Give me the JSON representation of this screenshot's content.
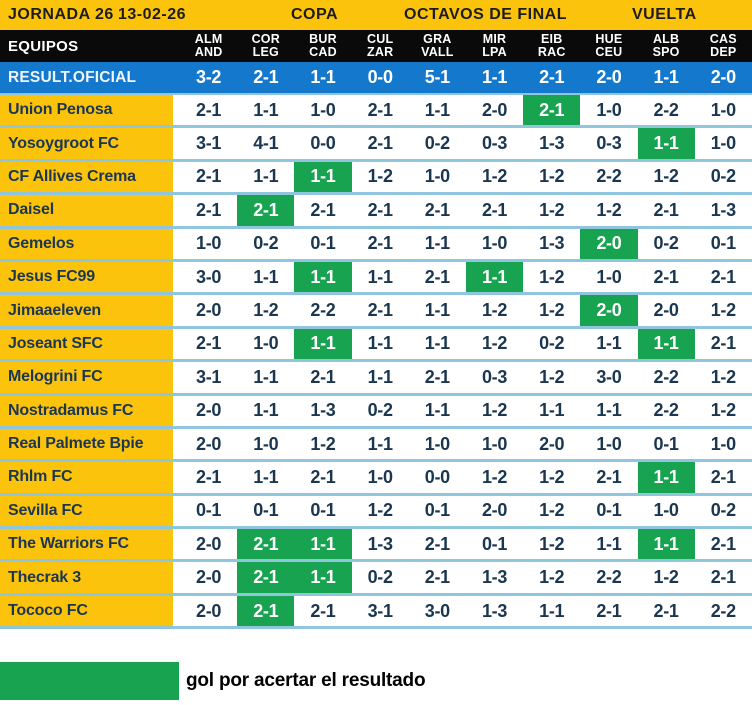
{
  "topbar": {
    "jornada": "JORNADA 26",
    "date": "13-02-26",
    "competition": "COPA",
    "stage": "OCTAVOS DE FINAL",
    "leg": "VUELTA"
  },
  "table": {
    "equipos_label": "EQUIPOS",
    "columns": [
      {
        "top": "ALM",
        "bottom": "AND"
      },
      {
        "top": "COR",
        "bottom": "LEG"
      },
      {
        "top": "BUR",
        "bottom": "CAD"
      },
      {
        "top": "CUL",
        "bottom": "ZAR"
      },
      {
        "top": "GRA",
        "bottom": "VALL"
      },
      {
        "top": "MIR",
        "bottom": "LPA"
      },
      {
        "top": "EIB",
        "bottom": "RAC"
      },
      {
        "top": "HUE",
        "bottom": "CEU"
      },
      {
        "top": "ALB",
        "bottom": "SPO"
      },
      {
        "top": "CAS",
        "bottom": "DEP"
      }
    ],
    "official": {
      "label": "RESULT.OFICIAL",
      "scores": [
        "3-2",
        "2-1",
        "1-1",
        "0-0",
        "5-1",
        "1-1",
        "2-1",
        "2-0",
        "1-1",
        "2-0"
      ]
    },
    "teams": [
      {
        "name": "Union Penosa",
        "predictions": [
          {
            "score": "2-1",
            "exact": false
          },
          {
            "score": "1-1",
            "exact": false
          },
          {
            "score": "1-0",
            "exact": false
          },
          {
            "score": "2-1",
            "exact": false
          },
          {
            "score": "1-1",
            "exact": false
          },
          {
            "score": "2-0",
            "exact": false
          },
          {
            "score": "2-1",
            "exact": true
          },
          {
            "score": "1-0",
            "exact": false
          },
          {
            "score": "2-2",
            "exact": false
          },
          {
            "score": "1-0",
            "exact": false
          }
        ]
      },
      {
        "name": "Yosoygroot FC",
        "predictions": [
          {
            "score": "3-1",
            "exact": false
          },
          {
            "score": "4-1",
            "exact": false
          },
          {
            "score": "0-0",
            "exact": false
          },
          {
            "score": "2-1",
            "exact": false
          },
          {
            "score": "0-2",
            "exact": false
          },
          {
            "score": "0-3",
            "exact": false
          },
          {
            "score": "1-3",
            "exact": false
          },
          {
            "score": "0-3",
            "exact": false
          },
          {
            "score": "1-1",
            "exact": true
          },
          {
            "score": "1-0",
            "exact": false
          }
        ]
      },
      {
        "name": "CF Allives Crema",
        "predictions": [
          {
            "score": "2-1",
            "exact": false
          },
          {
            "score": "1-1",
            "exact": false
          },
          {
            "score": "1-1",
            "exact": true
          },
          {
            "score": "1-2",
            "exact": false
          },
          {
            "score": "1-0",
            "exact": false
          },
          {
            "score": "1-2",
            "exact": false
          },
          {
            "score": "1-2",
            "exact": false
          },
          {
            "score": "2-2",
            "exact": false
          },
          {
            "score": "1-2",
            "exact": false
          },
          {
            "score": "0-2",
            "exact": false
          }
        ]
      },
      {
        "name": "Daisel",
        "predictions": [
          {
            "score": "2-1",
            "exact": false
          },
          {
            "score": "2-1",
            "exact": true
          },
          {
            "score": "2-1",
            "exact": false
          },
          {
            "score": "2-1",
            "exact": false
          },
          {
            "score": "2-1",
            "exact": false
          },
          {
            "score": "2-1",
            "exact": false
          },
          {
            "score": "1-2",
            "exact": false
          },
          {
            "score": "1-2",
            "exact": false
          },
          {
            "score": "2-1",
            "exact": false
          },
          {
            "score": "1-3",
            "exact": false
          }
        ]
      },
      {
        "name": "Gemelos",
        "predictions": [
          {
            "score": "1-0",
            "exact": false
          },
          {
            "score": "0-2",
            "exact": false
          },
          {
            "score": "0-1",
            "exact": false
          },
          {
            "score": "2-1",
            "exact": false
          },
          {
            "score": "1-1",
            "exact": false
          },
          {
            "score": "1-0",
            "exact": false
          },
          {
            "score": "1-3",
            "exact": false
          },
          {
            "score": "2-0",
            "exact": true
          },
          {
            "score": "0-2",
            "exact": false
          },
          {
            "score": "0-1",
            "exact": false
          }
        ]
      },
      {
        "name": "Jesus FC99",
        "predictions": [
          {
            "score": "3-0",
            "exact": false
          },
          {
            "score": "1-1",
            "exact": false
          },
          {
            "score": "1-1",
            "exact": true
          },
          {
            "score": "1-1",
            "exact": false
          },
          {
            "score": "2-1",
            "exact": false
          },
          {
            "score": "1-1",
            "exact": true
          },
          {
            "score": "1-2",
            "exact": false
          },
          {
            "score": "1-0",
            "exact": false
          },
          {
            "score": "2-1",
            "exact": false
          },
          {
            "score": "2-1",
            "exact": false
          }
        ]
      },
      {
        "name": "Jimaaeleven",
        "predictions": [
          {
            "score": "2-0",
            "exact": false
          },
          {
            "score": "1-2",
            "exact": false
          },
          {
            "score": "2-2",
            "exact": false
          },
          {
            "score": "2-1",
            "exact": false
          },
          {
            "score": "1-1",
            "exact": false
          },
          {
            "score": "1-2",
            "exact": false
          },
          {
            "score": "1-2",
            "exact": false
          },
          {
            "score": "2-0",
            "exact": true
          },
          {
            "score": "2-0",
            "exact": false
          },
          {
            "score": "1-2",
            "exact": false
          }
        ]
      },
      {
        "name": "Joseant SFC",
        "predictions": [
          {
            "score": "2-1",
            "exact": false
          },
          {
            "score": "1-0",
            "exact": false
          },
          {
            "score": "1-1",
            "exact": true
          },
          {
            "score": "1-1",
            "exact": false
          },
          {
            "score": "1-1",
            "exact": false
          },
          {
            "score": "1-2",
            "exact": false
          },
          {
            "score": "0-2",
            "exact": false
          },
          {
            "score": "1-1",
            "exact": false
          },
          {
            "score": "1-1",
            "exact": true
          },
          {
            "score": "2-1",
            "exact": false
          }
        ]
      },
      {
        "name": "Melogrini FC",
        "predictions": [
          {
            "score": "3-1",
            "exact": false
          },
          {
            "score": "1-1",
            "exact": false
          },
          {
            "score": "2-1",
            "exact": false
          },
          {
            "score": "1-1",
            "exact": false
          },
          {
            "score": "2-1",
            "exact": false
          },
          {
            "score": "0-3",
            "exact": false
          },
          {
            "score": "1-2",
            "exact": false
          },
          {
            "score": "3-0",
            "exact": false
          },
          {
            "score": "2-2",
            "exact": false
          },
          {
            "score": "1-2",
            "exact": false
          }
        ]
      },
      {
        "name": "Nostradamus FC",
        "predictions": [
          {
            "score": "2-0",
            "exact": false
          },
          {
            "score": "1-1",
            "exact": false
          },
          {
            "score": "1-3",
            "exact": false
          },
          {
            "score": "0-2",
            "exact": false
          },
          {
            "score": "1-1",
            "exact": false
          },
          {
            "score": "1-2",
            "exact": false
          },
          {
            "score": "1-1",
            "exact": false
          },
          {
            "score": "1-1",
            "exact": false
          },
          {
            "score": "2-2",
            "exact": false
          },
          {
            "score": "1-2",
            "exact": false
          }
        ]
      },
      {
        "name": "Real Palmete Bpie",
        "predictions": [
          {
            "score": "2-0",
            "exact": false
          },
          {
            "score": "1-0",
            "exact": false
          },
          {
            "score": "1-2",
            "exact": false
          },
          {
            "score": "1-1",
            "exact": false
          },
          {
            "score": "1-0",
            "exact": false
          },
          {
            "score": "1-0",
            "exact": false
          },
          {
            "score": "2-0",
            "exact": false
          },
          {
            "score": "1-0",
            "exact": false
          },
          {
            "score": "0-1",
            "exact": false
          },
          {
            "score": "1-0",
            "exact": false
          }
        ]
      },
      {
        "name": "Rhlm FC",
        "predictions": [
          {
            "score": "2-1",
            "exact": false
          },
          {
            "score": "1-1",
            "exact": false
          },
          {
            "score": "2-1",
            "exact": false
          },
          {
            "score": "1-0",
            "exact": false
          },
          {
            "score": "0-0",
            "exact": false
          },
          {
            "score": "1-2",
            "exact": false
          },
          {
            "score": "1-2",
            "exact": false
          },
          {
            "score": "2-1",
            "exact": false
          },
          {
            "score": "1-1",
            "exact": true
          },
          {
            "score": "2-1",
            "exact": false
          }
        ]
      },
      {
        "name": "Sevilla FC",
        "predictions": [
          {
            "score": "0-1",
            "exact": false
          },
          {
            "score": "0-1",
            "exact": false
          },
          {
            "score": "0-1",
            "exact": false
          },
          {
            "score": "1-2",
            "exact": false
          },
          {
            "score": "0-1",
            "exact": false
          },
          {
            "score": "2-0",
            "exact": false
          },
          {
            "score": "1-2",
            "exact": false
          },
          {
            "score": "0-1",
            "exact": false
          },
          {
            "score": "1-0",
            "exact": false
          },
          {
            "score": "0-2",
            "exact": false
          }
        ]
      },
      {
        "name": "The Warriors FC",
        "predictions": [
          {
            "score": "2-0",
            "exact": false
          },
          {
            "score": "2-1",
            "exact": true
          },
          {
            "score": "1-1",
            "exact": true
          },
          {
            "score": "1-3",
            "exact": false
          },
          {
            "score": "2-1",
            "exact": false
          },
          {
            "score": "0-1",
            "exact": false
          },
          {
            "score": "1-2",
            "exact": false
          },
          {
            "score": "1-1",
            "exact": false
          },
          {
            "score": "1-1",
            "exact": true
          },
          {
            "score": "2-1",
            "exact": false
          }
        ]
      },
      {
        "name": "Thecrak 3",
        "predictions": [
          {
            "score": "2-0",
            "exact": false
          },
          {
            "score": "2-1",
            "exact": true
          },
          {
            "score": "1-1",
            "exact": true
          },
          {
            "score": "0-2",
            "exact": false
          },
          {
            "score": "2-1",
            "exact": false
          },
          {
            "score": "1-3",
            "exact": false
          },
          {
            "score": "1-2",
            "exact": false
          },
          {
            "score": "2-2",
            "exact": false
          },
          {
            "score": "1-2",
            "exact": false
          },
          {
            "score": "2-1",
            "exact": false
          }
        ]
      },
      {
        "name": "Tococo FC",
        "predictions": [
          {
            "score": "2-0",
            "exact": false
          },
          {
            "score": "2-1",
            "exact": true
          },
          {
            "score": "2-1",
            "exact": false
          },
          {
            "score": "3-1",
            "exact": false
          },
          {
            "score": "3-0",
            "exact": false
          },
          {
            "score": "1-3",
            "exact": false
          },
          {
            "score": "1-1",
            "exact": false
          },
          {
            "score": "2-1",
            "exact": false
          },
          {
            "score": "2-1",
            "exact": false
          },
          {
            "score": "2-2",
            "exact": false
          }
        ]
      }
    ]
  },
  "legend": {
    "text": "gol por acertar el resultado"
  },
  "colors": {
    "yellow": "#fcc30d",
    "black": "#0a0a0a",
    "blue": "#1478cc",
    "green": "#17a34f",
    "navy": "#1b3750",
    "sep": "#8fc6de",
    "tbtext": "#1d1d1b",
    "white": "#ffffff"
  }
}
